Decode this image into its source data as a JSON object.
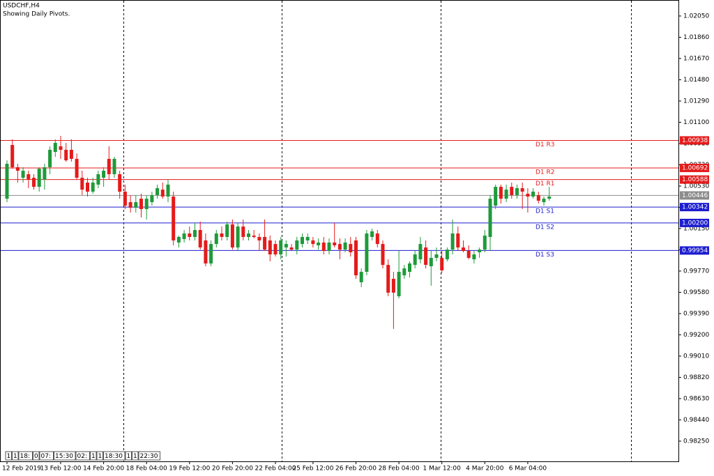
{
  "chart_data": {
    "type": "candlestick",
    "title": "USDCHF,H4",
    "subtitle": "Showing Daily Pivots.",
    "bull_color": "#1f9a3a",
    "bear_color": "#e41b1b",
    "ylim": [
      0.98069,
      1.02193
    ],
    "yticks": [
      {
        "value": 1.0205,
        "label": "1.02050"
      },
      {
        "value": 1.0186,
        "label": "1.01860"
      },
      {
        "value": 1.0167,
        "label": "1.01670"
      },
      {
        "value": 1.0148,
        "label": "1.01480"
      },
      {
        "value": 1.0129,
        "label": "1.01290"
      },
      {
        "value": 1.011,
        "label": "1.01100"
      },
      {
        "value": 1.0091,
        "label": "1.00910"
      },
      {
        "value": 1.0072,
        "label": "1.00720"
      },
      {
        "value": 1.0053,
        "label": "1.00530"
      },
      {
        "value": 1.0034,
        "label": "1.00340"
      },
      {
        "value": 1.0015,
        "label": "1.00150"
      },
      {
        "value": 0.9996,
        "label": "0.99960"
      },
      {
        "value": 0.9977,
        "label": "0.99770"
      },
      {
        "value": 0.9958,
        "label": "0.99580"
      },
      {
        "value": 0.9939,
        "label": "0.99390"
      },
      {
        "value": 0.992,
        "label": "0.99200"
      },
      {
        "value": 0.9901,
        "label": "0.99010"
      },
      {
        "value": 0.9882,
        "label": "0.98820"
      },
      {
        "value": 0.9863,
        "label": "0.98630"
      },
      {
        "value": 0.9844,
        "label": "0.98440"
      },
      {
        "value": 0.9825,
        "label": "0.98250"
      }
    ],
    "xticks": [
      {
        "value": 0,
        "label": "12 Feb 2019"
      },
      {
        "value": 10,
        "label": "13 Feb 12:00"
      },
      {
        "value": 18,
        "label": "14 Feb 20:00"
      },
      {
        "value": 26,
        "label": "18 Feb 04:00"
      },
      {
        "value": 34,
        "label": "19 Feb 12:00"
      },
      {
        "value": 42,
        "label": "20 Feb 20:00"
      },
      {
        "value": 50,
        "label": "22 Feb 04:00"
      },
      {
        "value": 57,
        "label": "25 Feb 12:00"
      },
      {
        "value": 65,
        "label": "26 Feb 20:00"
      },
      {
        "value": 73,
        "label": "28 Feb 04:00"
      },
      {
        "value": 81,
        "label": "1 Mar 12:00"
      },
      {
        "value": 89,
        "label": "4 Mar 20:00"
      },
      {
        "value": 97,
        "label": "6 Mar 04:00"
      }
    ],
    "open": [
      1.00417,
      1.00897,
      1.00698,
      1.00604,
      1.00636,
      1.00604,
      1.00523,
      1.00586,
      1.00698,
      1.00835,
      1.00885,
      1.00854,
      1.00854,
      1.00773,
      1.00604,
      1.00561,
      1.0048,
      1.00543,
      1.00604,
      1.00773,
      1.00636,
      1.00636,
      1.0048,
      1.00386,
      1.00336,
      1.00417,
      1.00324,
      1.00386,
      1.00449,
      1.00498,
      1.00436,
      1.00436,
      1.00025,
      1.00056,
      1.00106,
      1.00075,
      1.00137,
      1.00044,
      0.99838,
      1.00012,
      1.00106,
      1.00075,
      1.00187,
      0.99981,
      1.00168,
      1.00075,
      1.00087,
      1.00075,
      1.00075,
      1.00044,
      1.00012,
      0.99919,
      0.99981,
      0.99981,
      0.99962,
      1.00012,
      1.00044,
      1.00044,
      1.0,
      1.00025,
      0.9995,
      1.00025,
      1.00012,
      0.99962,
      1.00012,
      1.00044,
      0.9967,
      0.99763,
      1.00075,
      1.00106,
      1.00012,
      0.99825,
      0.99701,
      0.99545,
      0.99732,
      0.99763,
      0.99825,
      0.99875,
      0.99981,
      0.99813,
      0.99888,
      0.99888,
      0.99875,
      0.99962,
      1.00106,
      0.99981,
      0.9995,
      0.99875,
      0.99938,
      0.99962,
      1.00075,
      1.00355,
      1.00523,
      1.00417,
      1.00523,
      1.00449,
      1.00511,
      1.00461,
      1.00436,
      1.00449,
      1.00386,
      1.00417
    ],
    "high": [
      1.0076,
      1.00947,
      1.00729,
      1.00698,
      1.00667,
      1.00636,
      1.00698,
      1.00729,
      1.00885,
      1.00947,
      1.00978,
      1.00916,
      1.00947,
      1.00822,
      1.00667,
      1.00604,
      1.00604,
      1.00667,
      1.00698,
      1.00885,
      1.00791,
      1.00667,
      1.00543,
      1.00449,
      1.00449,
      1.00461,
      1.00449,
      1.0048,
      1.00543,
      1.00561,
      1.00586,
      1.0048,
      1.00087,
      1.00137,
      1.00168,
      1.00199,
      1.00212,
      1.00106,
      1.00044,
      1.00137,
      1.00168,
      1.00212,
      1.00231,
      1.00199,
      1.00231,
      1.00137,
      1.00137,
      1.00106,
      1.00231,
      1.00087,
      1.00044,
      1.00075,
      1.00044,
      1.00012,
      1.00075,
      1.00106,
      1.00106,
      1.00075,
      1.00062,
      1.00075,
      1.00062,
      1.00199,
      1.00062,
      1.00062,
      1.00075,
      1.00075,
      0.99794,
      1.00137,
      1.00149,
      1.00137,
      1.00044,
      0.99875,
      0.99763,
      0.9995,
      0.99825,
      0.99857,
      0.9995,
      1.00075,
      1.00044,
      0.9995,
      0.99981,
      0.9995,
      0.99981,
      1.00231,
      1.00168,
      1.00044,
      1.0,
      0.9995,
      0.99981,
      1.00137,
      1.00449,
      1.00543,
      1.00543,
      1.00543,
      1.00561,
      1.00543,
      1.00561,
      1.00511,
      1.00511,
      1.0048,
      1.00436,
      1.00523
    ],
    "low": [
      1.00386,
      1.00685,
      1.00561,
      1.00561,
      1.00511,
      1.00498,
      1.0048,
      1.00498,
      1.00636,
      1.00791,
      1.00773,
      1.00748,
      1.00748,
      1.00586,
      1.00449,
      1.00436,
      1.00461,
      1.00511,
      1.00523,
      1.00586,
      1.00604,
      1.00417,
      1.00324,
      1.00293,
      1.00293,
      1.00249,
      1.00231,
      1.00355,
      1.00417,
      1.00417,
      1.00386,
      1.0,
      0.99981,
      1.00025,
      1.00044,
      1.00044,
      0.99962,
      0.99813,
      0.99813,
      0.99981,
      1.00044,
      1.00044,
      0.99962,
      0.9995,
      1.00044,
      1.00044,
      1.00062,
      0.9995,
      0.9995,
      0.99857,
      0.999,
      0.99875,
      0.999,
      0.9995,
      0.99919,
      0.99981,
      1.00012,
      0.99981,
      0.99962,
      0.99919,
      0.99919,
      0.99981,
      0.99875,
      0.99938,
      0.999,
      0.99701,
      0.99626,
      0.99732,
      1.00044,
      0.99981,
      0.99794,
      0.99545,
      0.99253,
      0.99527,
      0.99701,
      0.99713,
      0.99794,
      0.99838,
      0.99794,
      0.99639,
      0.99857,
      0.99751,
      0.99857,
      0.99919,
      0.9995,
      0.99938,
      0.99875,
      0.99838,
      0.99888,
      0.99938,
      0.9995,
      1.00324,
      1.00374,
      1.00386,
      1.00417,
      1.00417,
      1.00324,
      1.00293,
      1.00417,
      1.00374,
      1.00355,
      1.00399
    ],
    "close": [
      1.00729,
      1.00698,
      1.00667,
      1.00667,
      1.00586,
      1.00523,
      1.00685,
      1.00698,
      1.00854,
      1.00916,
      1.00854,
      1.0076,
      1.00773,
      1.00604,
      1.00498,
      1.0048,
      1.00561,
      1.00636,
      1.00667,
      1.00636,
      1.00773,
      1.0048,
      1.00355,
      1.00336,
      1.00386,
      1.00324,
      1.00417,
      1.00449,
      1.00511,
      1.00436,
      1.00543,
      1.00044,
      1.00075,
      1.00106,
      1.00075,
      1.00137,
      0.99981,
      0.99838,
      1.00012,
      1.00106,
      1.00075,
      1.00187,
      0.99981,
      1.00168,
      1.00075,
      1.00106,
      1.00075,
      1.00044,
      0.99962,
      0.99919,
      0.99919,
      1.00044,
      1.00012,
      0.99962,
      1.00044,
      1.00075,
      1.00075,
      1.00012,
      1.00025,
      0.9995,
      1.00025,
      1.0,
      0.99962,
      1.00025,
      0.99938,
      0.99732,
      0.99763,
      1.00106,
      1.00125,
      1.00012,
      0.99825,
      0.99577,
      0.99577,
      0.99763,
      0.99794,
      0.99838,
      0.99919,
      1.00012,
      0.99825,
      0.99888,
      0.99919,
      0.99776,
      0.99962,
      1.00106,
      0.99981,
      0.9995,
      0.99888,
      0.99919,
      0.99962,
      1.00087,
      1.00417,
      1.00523,
      1.00417,
      1.00498,
      1.00449,
      1.00511,
      1.0048,
      1.00436,
      1.0048,
      1.00399,
      1.00417,
      1.00436
    ],
    "levels": [
      {
        "name": "D1 R3",
        "value": 1.00938,
        "color": "#e41b1b"
      },
      {
        "name": "D1 R2",
        "value": 1.00692,
        "color": "#e41b1b"
      },
      {
        "name": "D1 R1",
        "value": 1.00588,
        "color": "#e41b1b"
      },
      {
        "name": "D1 S1",
        "value": 1.00342,
        "color": "#1c1cd0"
      },
      {
        "name": "D1 S2",
        "value": 1.002,
        "value_label": "1.00200",
        "color": "#1c1cd0"
      },
      {
        "name": "D1 S3",
        "value": 0.99954,
        "color": "#1c1cd0"
      }
    ],
    "bid": 1.00446,
    "bid_color": "#8c8c8c",
    "separator_labels": [
      "1",
      "1",
      "18:",
      "0",
      "07:",
      "15:30",
      "02:",
      "1",
      "1",
      "18:30",
      "1",
      "1",
      "22:30"
    ]
  }
}
